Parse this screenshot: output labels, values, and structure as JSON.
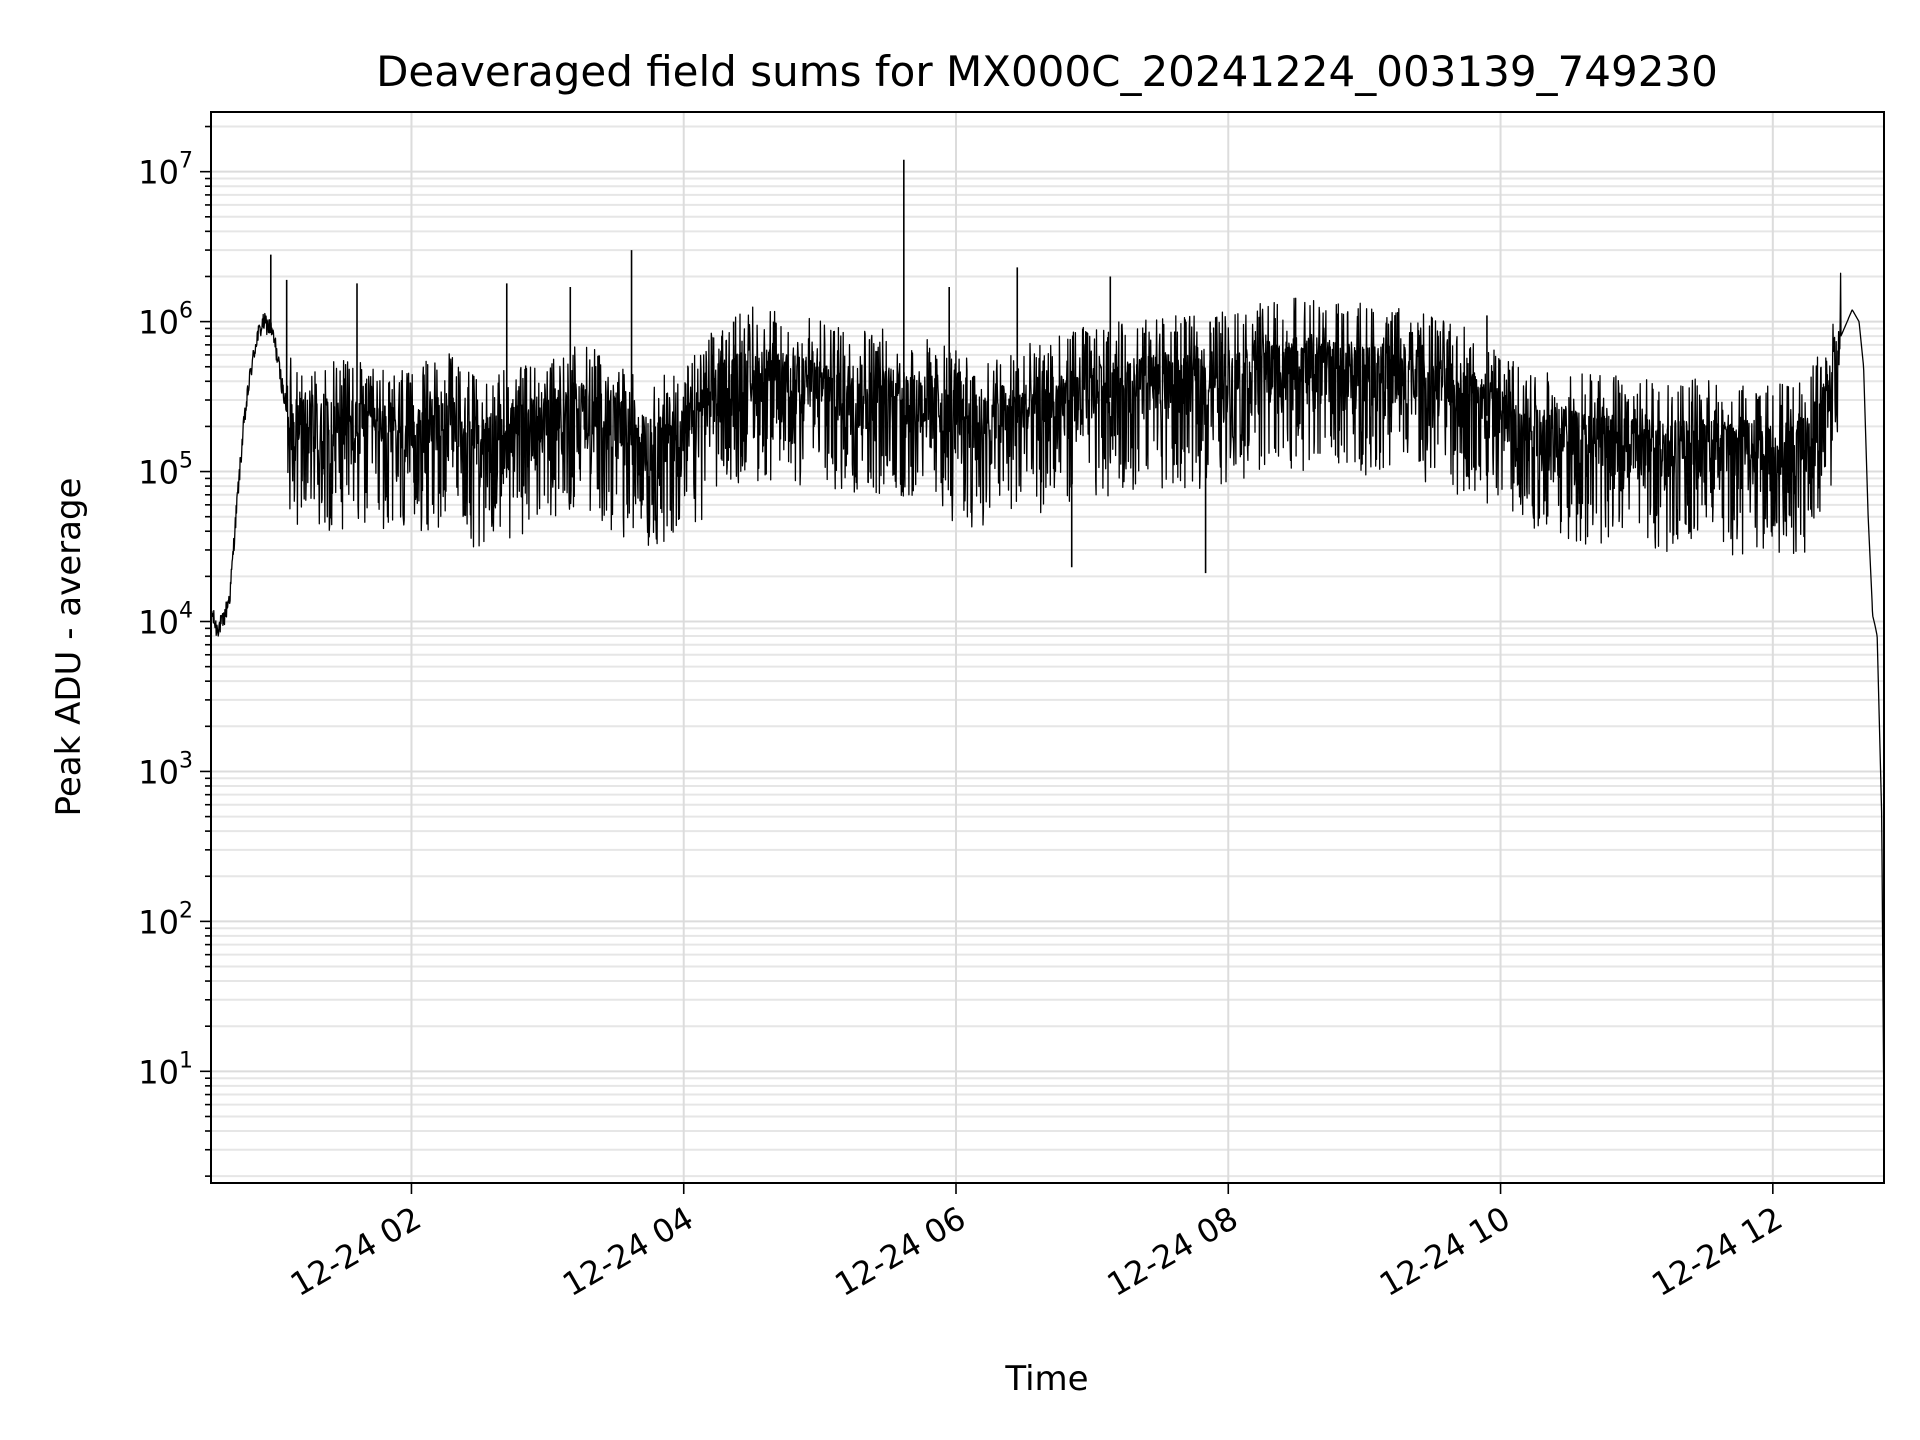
{
  "chart_data": {
    "type": "line",
    "title": "Deaveraged field sums for MX000C_20241224_003139_749230",
    "xlabel": "Time",
    "ylabel": "Peak ADU - average",
    "yscale": "log",
    "xlim": [
      "2024-12-24 00:31:39",
      "2024-12-24 12:49:00"
    ],
    "ylim": [
      1.8,
      25000000
    ],
    "grid": true,
    "legend": "none",
    "x_ticks": [
      {
        "value": "2024-12-24 02:00",
        "label": "12-24 02"
      },
      {
        "value": "2024-12-24 04:00",
        "label": "12-24 04"
      },
      {
        "value": "2024-12-24 06:00",
        "label": "12-24 06"
      },
      {
        "value": "2024-12-24 08:00",
        "label": "12-24 08"
      },
      {
        "value": "2024-12-24 10:00",
        "label": "12-24 10"
      },
      {
        "value": "2024-12-24 12:00",
        "label": "12-24 12"
      }
    ],
    "y_ticks": [
      {
        "value": 10,
        "base": "10",
        "exp": "1"
      },
      {
        "value": 100,
        "base": "10",
        "exp": "2"
      },
      {
        "value": 1000,
        "base": "10",
        "exp": "3"
      },
      {
        "value": 10000,
        "base": "10",
        "exp": "4"
      },
      {
        "value": 100000,
        "base": "10",
        "exp": "5"
      },
      {
        "value": 1000000,
        "base": "10",
        "exp": "6"
      },
      {
        "value": 10000000,
        "base": "10",
        "exp": "7"
      }
    ],
    "series": [
      {
        "color": "#000000",
        "x": [
          "2024-12-24 00:31:39",
          "2024-12-24 00:34",
          "2024-12-24 00:37",
          "2024-12-24 00:40",
          "2024-12-24 00:43",
          "2024-12-24 00:46",
          "2024-12-24 00:49",
          "2024-12-24 00:52",
          "2024-12-24 00:55",
          "2024-12-24 00:58",
          "2024-12-24 01:00",
          "2024-12-24 01:05",
          "2024-12-24 01:10",
          "2024-12-24 01:15",
          "2024-12-24 01:20",
          "2024-12-24 01:30",
          "2024-12-24 01:45",
          "2024-12-24 02:00",
          "2024-12-24 02:15",
          "2024-12-24 02:30",
          "2024-12-24 02:45",
          "2024-12-24 03:00",
          "2024-12-24 03:15",
          "2024-12-24 03:30",
          "2024-12-24 03:45",
          "2024-12-24 04:00",
          "2024-12-24 04:15",
          "2024-12-24 04:30",
          "2024-12-24 04:45",
          "2024-12-24 05:00",
          "2024-12-24 05:15",
          "2024-12-24 05:30",
          "2024-12-24 05:45",
          "2024-12-24 06:00",
          "2024-12-24 06:15",
          "2024-12-24 06:30",
          "2024-12-24 06:45",
          "2024-12-24 07:00",
          "2024-12-24 07:15",
          "2024-12-24 07:30",
          "2024-12-24 07:45",
          "2024-12-24 08:00",
          "2024-12-24 08:15",
          "2024-12-24 08:30",
          "2024-12-24 08:45",
          "2024-12-24 09:00",
          "2024-12-24 09:15",
          "2024-12-24 09:30",
          "2024-12-24 09:45",
          "2024-12-24 10:00",
          "2024-12-24 10:15",
          "2024-12-24 10:30",
          "2024-12-24 10:45",
          "2024-12-24 11:00",
          "2024-12-24 11:15",
          "2024-12-24 11:30",
          "2024-12-24 11:45",
          "2024-12-24 12:00",
          "2024-12-24 12:15",
          "2024-12-24 12:25",
          "2024-12-24 12:30",
          "2024-12-24 12:35",
          "2024-12-24 12:38",
          "2024-12-24 12:40",
          "2024-12-24 12:42",
          "2024-12-24 12:44",
          "2024-12-24 12:45",
          "2024-12-24 12:46",
          "2024-12-24 12:47",
          "2024-12-24 12:48",
          "2024-12-24 12:49"
        ],
        "y": [
          12000,
          9000,
          10000,
          15000,
          60000,
          200000,
          450000,
          800000,
          1000000,
          900000,
          700000,
          250000,
          180000,
          200000,
          170000,
          180000,
          160000,
          150000,
          200000,
          130000,
          160000,
          200000,
          230000,
          180000,
          130000,
          150000,
          300000,
          400000,
          350000,
          320000,
          300000,
          280000,
          250000,
          200000,
          180000,
          220000,
          250000,
          300000,
          320000,
          350000,
          340000,
          380000,
          420000,
          450000,
          430000,
          420000,
          400000,
          350000,
          300000,
          200000,
          160000,
          150000,
          140000,
          130000,
          130000,
          130000,
          120000,
          120000,
          130000,
          300000,
          800000,
          1200000,
          1000000,
          500000,
          50000,
          11000,
          9500,
          8000,
          2000,
          500,
          4
        ],
        "spikes": [
          {
            "x": "2024-12-24 00:58",
            "y": 2800000
          },
          {
            "x": "2024-12-24 01:05",
            "y": 1900000
          },
          {
            "x": "2024-12-24 01:36",
            "y": 1800000
          },
          {
            "x": "2024-12-24 02:42",
            "y": 1800000
          },
          {
            "x": "2024-12-24 03:10",
            "y": 1700000
          },
          {
            "x": "2024-12-24 03:37",
            "y": 3000000
          },
          {
            "x": "2024-12-24 04:22",
            "y": 1000000
          },
          {
            "x": "2024-12-24 05:37",
            "y": 12000000
          },
          {
            "x": "2024-12-24 05:57",
            "y": 1700000
          },
          {
            "x": "2024-12-24 06:27",
            "y": 2300000
          },
          {
            "x": "2024-12-24 07:08",
            "y": 2000000
          },
          {
            "x": "2024-12-24 07:52",
            "y": 1000000
          },
          {
            "x": "2024-12-24 09:54",
            "y": 1100000
          },
          {
            "x": "2024-12-24 06:51",
            "y": 23000
          },
          {
            "x": "2024-12-24 07:50",
            "y": 21000
          }
        ]
      }
    ]
  }
}
